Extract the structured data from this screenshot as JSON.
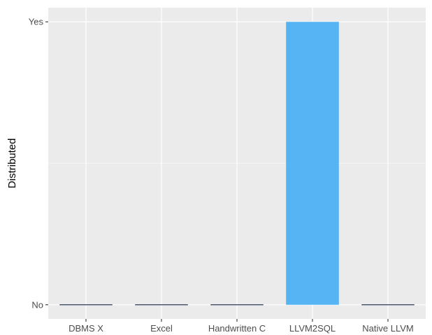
{
  "chart_data": {
    "type": "bar",
    "title": "",
    "xlabel": "",
    "ylabel": "Distributed",
    "categories": [
      "DBMS X",
      "Excel",
      "Handwritten C",
      "LLVM2SQL",
      "Native LLVM"
    ],
    "values": [
      0,
      0,
      0,
      1,
      0
    ],
    "y_ticks": [
      {
        "value": 0,
        "label": "No"
      },
      {
        "value": 1,
        "label": "Yes"
      }
    ],
    "ylim": [
      -0.05,
      1.05
    ],
    "grid": true,
    "legend": "none",
    "colors": {
      "panel_background": "#EBEBEB",
      "grid_major": "#FFFFFF",
      "bar_fill": "#56B4F5",
      "zero_bar": "#2B3A55"
    }
  }
}
